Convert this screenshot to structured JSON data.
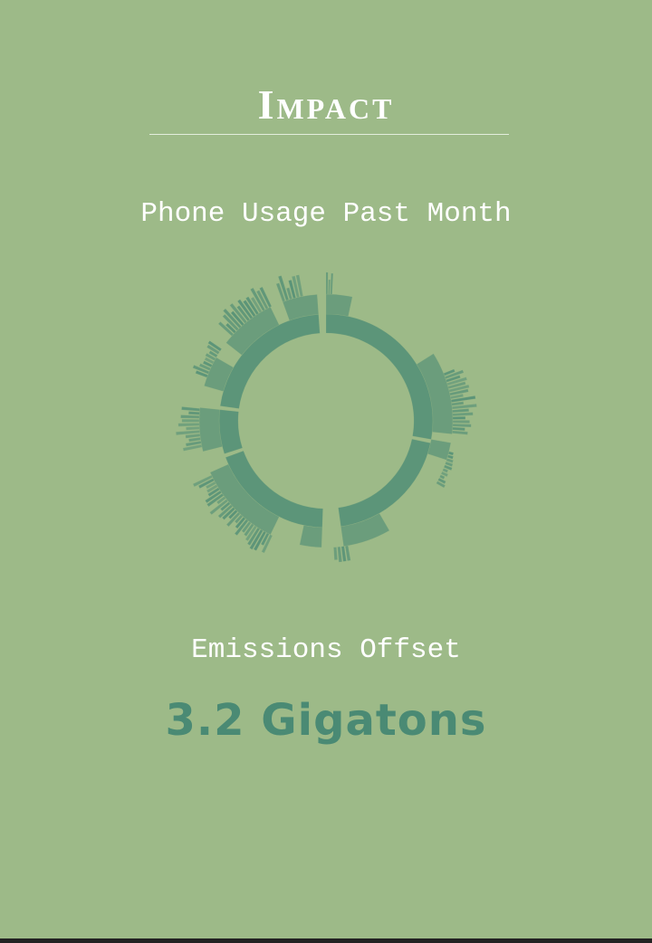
{
  "page": {
    "title": "Impact",
    "subtitle": "Phone Usage Past Month",
    "offset_label": "Emissions Offset",
    "offset_value": "3.2 Gigatons"
  },
  "colors": {
    "background": "#9dba88",
    "accent": "#4a8a74",
    "text": "#ffffff"
  }
}
